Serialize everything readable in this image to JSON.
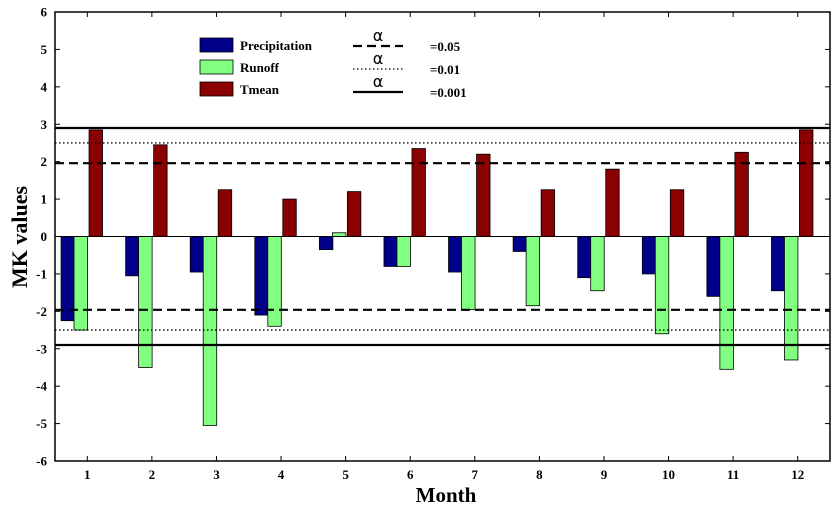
{
  "chart_data": {
    "type": "bar",
    "xlabel": "Month",
    "ylabel": "MK values",
    "ylim": [
      -6,
      6
    ],
    "yticks": [
      "-6",
      "-5",
      "-4",
      "-3",
      "-2",
      "-1",
      "0",
      "1",
      "2",
      "3",
      "4",
      "5",
      "6"
    ],
    "categories": [
      "1",
      "2",
      "3",
      "4",
      "5",
      "6",
      "7",
      "8",
      "9",
      "10",
      "11",
      "12"
    ],
    "series": [
      {
        "name": "Precipitation",
        "color": "#00008b",
        "values": [
          -2.25,
          -1.05,
          -0.95,
          -2.1,
          -0.35,
          -0.8,
          -0.95,
          -0.4,
          -1.1,
          -1.0,
          -1.6,
          -1.45
        ]
      },
      {
        "name": "Runoff",
        "color": "#80ff80",
        "values": [
          -2.5,
          -3.5,
          -5.05,
          -2.4,
          0.1,
          -0.8,
          -1.95,
          -1.85,
          -1.45,
          -2.6,
          -3.55,
          -3.3
        ]
      },
      {
        "name": "Tmean",
        "color": "#8b0000",
        "values": [
          2.85,
          2.45,
          1.25,
          1.0,
          1.2,
          2.35,
          2.2,
          1.25,
          1.8,
          1.25,
          2.25,
          2.85
        ]
      }
    ],
    "significance_lines": [
      {
        "symbol": "α",
        "label": "=0.05",
        "style": "dashed",
        "value": 1.96
      },
      {
        "symbol": "α",
        "label": "=0.01",
        "style": "dotted",
        "value": 2.5
      },
      {
        "symbol": "α",
        "label": "=0.001",
        "style": "solid",
        "value": 2.9
      }
    ],
    "legend_position": "top-left",
    "grid": false
  }
}
